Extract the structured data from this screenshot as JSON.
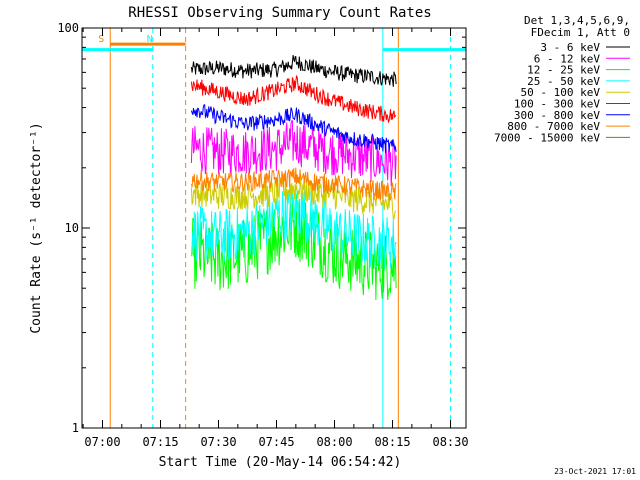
{
  "chart_data": {
    "type": "line",
    "title": "RHESSI Observing Summary Count Rates",
    "xlabel": "Start Time (20-May-14 06:54:42)",
    "ylabel": "Count Rate (s⁻¹ detector⁻¹)",
    "yscale": "log",
    "xlim": [
      "06:54:42",
      "08:34:00"
    ],
    "ylim": [
      1,
      100
    ],
    "x_ticks": [
      "07:00",
      "07:15",
      "07:30",
      "07:45",
      "08:00",
      "08:15",
      "08:30"
    ],
    "y_ticks": [
      "1",
      "10",
      "100"
    ],
    "grid": false,
    "legend_placement": "right",
    "legend_header": [
      "Det 1,3,4,5,6,9,",
      "FDecim 1, Att 0"
    ],
    "data_span": [
      "07:23:00",
      "08:16:30"
    ],
    "series": [
      {
        "name": "3 - 6 keV",
        "color": "#000000",
        "x": [
          "07:23",
          "07:30",
          "07:37",
          "07:45",
          "07:50",
          "07:55",
          "08:00",
          "08:05",
          "08:10",
          "08:16"
        ],
        "values": [
          62,
          63,
          61,
          62,
          68,
          63,
          60,
          58,
          57,
          55
        ]
      },
      {
        "name": "6 - 12 keV",
        "color": "#ff00ff",
        "x": [
          "07:23",
          "07:30",
          "07:37",
          "07:45",
          "07:50",
          "07:55",
          "08:00",
          "08:05",
          "08:10",
          "08:16"
        ],
        "values": [
          25,
          24,
          24,
          25,
          27,
          25,
          24,
          23,
          22,
          21
        ]
      },
      {
        "name": "12 - 25 keV",
        "color": "#00ff00",
        "x": [
          "07:23",
          "07:30",
          "07:37",
          "07:45",
          "07:50",
          "07:55",
          "08:00",
          "08:05",
          "08:10",
          "08:16"
        ],
        "values": [
          7.5,
          7.0,
          7.5,
          9.5,
          10.5,
          9.0,
          7.5,
          7.0,
          6.5,
          6.5
        ]
      },
      {
        "name": "25 - 50 keV",
        "color": "#00ffff",
        "x": [
          "07:23",
          "07:30",
          "07:37",
          "07:45",
          "07:50",
          "07:55",
          "08:00",
          "08:05",
          "08:10",
          "08:16"
        ],
        "values": [
          9.5,
          9.0,
          9.5,
          11.5,
          12.5,
          11.0,
          9.5,
          9.0,
          8.5,
          8.5
        ]
      },
      {
        "name": "50 - 100 keV",
        "color": "#cccc00",
        "x": [
          "07:23",
          "07:30",
          "07:37",
          "07:45",
          "07:50",
          "07:55",
          "08:00",
          "08:05",
          "08:10",
          "08:16"
        ],
        "values": [
          15,
          14.5,
          14.5,
          15,
          16,
          15,
          14.5,
          14,
          13.5,
          13
        ]
      },
      {
        "name": "100 - 300 keV",
        "color": "#ff0000",
        "x": [
          "07:23",
          "07:30",
          "07:37",
          "07:45",
          "07:50",
          "07:55",
          "08:00",
          "08:05",
          "08:10",
          "08:16"
        ],
        "values": [
          52,
          48,
          44,
          49,
          53,
          47,
          43,
          40,
          38,
          36
        ]
      },
      {
        "name": "300 - 800 keV",
        "color": "#0000ff",
        "x": [
          "07:23",
          "07:30",
          "07:37",
          "07:45",
          "07:50",
          "07:55",
          "08:00",
          "08:05",
          "08:10",
          "08:16"
        ],
        "values": [
          40,
          36,
          33,
          35,
          37,
          33,
          30,
          28,
          27,
          25
        ]
      },
      {
        "name": "800 - 7000 keV",
        "color": "#ff8000",
        "x": [
          "07:23",
          "07:30",
          "07:37",
          "07:45",
          "07:50",
          "07:55",
          "08:00",
          "08:05",
          "08:10",
          "08:16"
        ],
        "values": [
          17.5,
          17,
          17,
          17.5,
          18,
          17,
          16.5,
          16,
          15.5,
          15
        ]
      },
      {
        "name": "7000 - 15000 keV",
        "color": "#808000",
        "x": [],
        "values": []
      }
    ],
    "annotations": [
      {
        "label": "S",
        "color": "#ff8000",
        "x": "07:02",
        "type": "saa_marker"
      },
      {
        "label": "N",
        "color": "#00ffff",
        "x": "07:13",
        "type": "night_marker"
      }
    ],
    "vertical_markers": [
      {
        "x": "07:02",
        "style": "solid",
        "color": "#ff8000"
      },
      {
        "x": "07:13",
        "style": "dashed",
        "color": "#00ffff"
      },
      {
        "x": "07:21:30",
        "style": "dashed",
        "color": "#ff8000"
      },
      {
        "x": "08:12:30",
        "style": "solid",
        "color": "#00ffff"
      },
      {
        "x": "08:16:30",
        "style": "solid",
        "color": "#ff8000"
      },
      {
        "x": "08:30",
        "style": "dashed",
        "color": "#00ffff"
      }
    ],
    "horizontal_bars": [
      {
        "color": "#00ffff",
        "x_start": "06:54:42",
        "x_end": "07:13",
        "y": 78
      },
      {
        "color": "#ff8000",
        "x_start": "07:02",
        "x_end": "07:21:30",
        "y": 83
      },
      {
        "color": "#00ffff",
        "x_start": "08:12:30",
        "x_end": "08:34",
        "y": 78
      }
    ]
  },
  "footer": {
    "timestamp": "23-Oct-2021 17:01"
  }
}
